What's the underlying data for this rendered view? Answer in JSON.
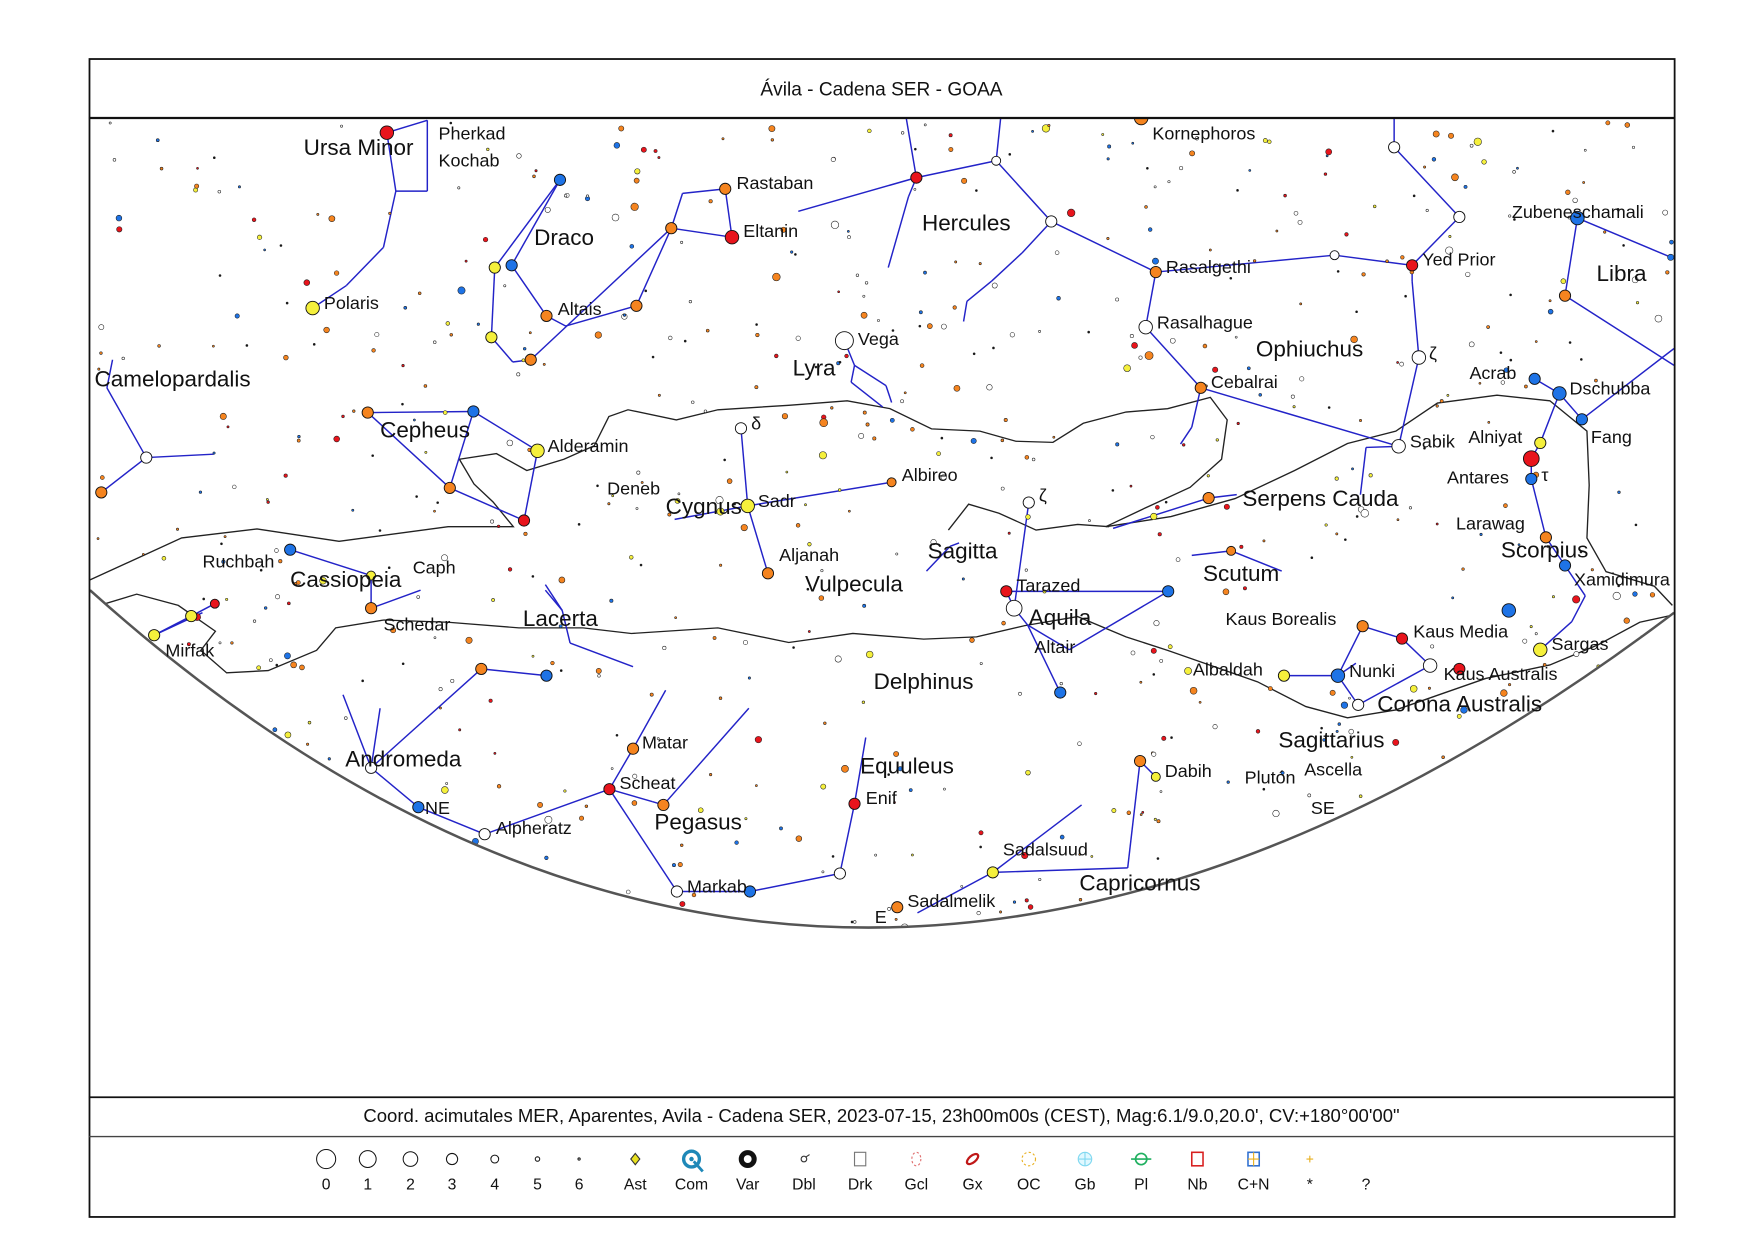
{
  "header": {
    "title": "Ávila - Cadena SER - GOAA"
  },
  "footer": {
    "info": "Coord. acimutales MER, Aparentes, Avila - Cadena SER, 2023-07-15, 23h00m00s (CEST), Mag:6.1/9.0,20.0', CV:+180°00'00\""
  },
  "colors": {
    "line": "#2323c8",
    "red": "#e8141c",
    "orange": "#f5841f",
    "yellow": "#f5f03c",
    "blue": "#1e73e6",
    "white": "#ffffff",
    "horizon": "#555555",
    "milky_way": "#222222"
  },
  "constellations": [
    "Ursa Minor",
    "Draco",
    "Hercules",
    "Ophiuchus",
    "Libra",
    "Lyra",
    "Camelopardalis",
    "Cepheus",
    "Cygnus",
    "Cassiopeia",
    "Lacerta",
    "Vulpecula",
    "Sagitta",
    "Aquila",
    "Scutum",
    "Serpens Cauda",
    "Scorpius",
    "Delphinus",
    "Andromeda",
    "Equuleus",
    "Pegasus",
    "Sagittarius",
    "Corona Australis",
    "Capricornus"
  ],
  "star_labels": [
    "Pherkad",
    "Kochab",
    "Rastaban",
    "Eltanin",
    "Polaris",
    "Altais",
    "Vega",
    "Kornephoros",
    "Rasalgethi",
    "Yed Prior",
    "Zubeneschamali",
    "Rasalhague",
    "Cebalrai",
    "Acrab",
    "Dschubba",
    "Alderamin",
    "Sabik",
    "Alniyat",
    "Fang",
    "Antares",
    "τ",
    "Albireo",
    "ζ",
    "δ",
    "Deneb",
    "Sadr",
    "Larawag",
    "Xamidimura",
    "Ruchbah",
    "Caph",
    "Aljanah",
    "Tarazed",
    "Altair",
    "Schedar",
    "Kaus Borealis",
    "Kaus Media",
    "Sargas",
    "Mirfak",
    "Albaldah",
    "Nunki",
    "Kaus Australis",
    "Ascella",
    "Matar",
    "Dabih",
    "Plutón",
    "Scheat",
    "Enif",
    "Alpheratz",
    "Markab",
    "Sadalsuud",
    "Sadalmelik",
    "ζ"
  ],
  "horizon_labels": [
    "NE",
    "SE",
    "E"
  ],
  "legend": [
    {
      "label": "0",
      "icon": "magnitude-0-icon"
    },
    {
      "label": "1",
      "icon": "magnitude-1-icon"
    },
    {
      "label": "2",
      "icon": "magnitude-2-icon"
    },
    {
      "label": "3",
      "icon": "magnitude-3-icon"
    },
    {
      "label": "4",
      "icon": "magnitude-4-icon"
    },
    {
      "label": "5",
      "icon": "magnitude-5-icon"
    },
    {
      "label": "6",
      "icon": "magnitude-6-icon"
    },
    {
      "label": "Ast",
      "icon": "asteroid-icon"
    },
    {
      "label": "Com",
      "icon": "comet-icon"
    },
    {
      "label": "Var",
      "icon": "variable-star-icon"
    },
    {
      "label": "Dbl",
      "icon": "double-star-icon"
    },
    {
      "label": "Drk",
      "icon": "dark-nebula-icon"
    },
    {
      "label": "Gcl",
      "icon": "galaxy-cluster-icon"
    },
    {
      "label": "Gx",
      "icon": "galaxy-icon"
    },
    {
      "label": "OC",
      "icon": "open-cluster-icon"
    },
    {
      "label": "Gb",
      "icon": "globular-cluster-icon"
    },
    {
      "label": "Pl",
      "icon": "planetary-nebula-icon"
    },
    {
      "label": "Nb",
      "icon": "nebula-icon"
    },
    {
      "label": "C+N",
      "icon": "cluster-nebula-icon"
    },
    {
      "label": "*",
      "icon": "star-icon"
    },
    {
      "label": "?",
      "icon": "unknown-object-icon"
    }
  ]
}
